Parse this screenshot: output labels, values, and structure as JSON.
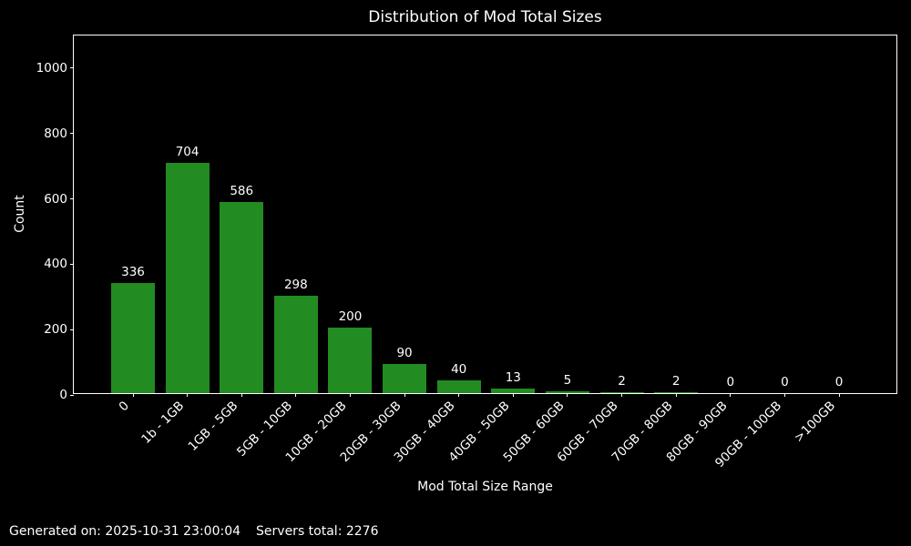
{
  "title": "Distribution of Mod Total Sizes",
  "xlabel": "Mod Total Size Range",
  "ylabel": "Count",
  "footer": {
    "generated": "Generated on: 2025-10-31 23:00:04",
    "servers_total": "Servers total: 2276"
  },
  "colors": {
    "background": "#000000",
    "bar": "#228B22",
    "text": "#ffffff",
    "axis": "#ffffff"
  },
  "chart_data": {
    "type": "bar",
    "title": "Distribution of Mod Total Sizes",
    "xlabel": "Mod Total Size Range",
    "ylabel": "Count",
    "categories": [
      "0",
      "1b - 1GB",
      "1GB - 5GB",
      "5GB - 10GB",
      "10GB - 20GB",
      "20GB - 30GB",
      "30GB - 40GB",
      "40GB - 50GB",
      "50GB - 60GB",
      "60GB - 70GB",
      "70GB - 80GB",
      "80GB - 90GB",
      "90GB - 100GB",
      ">100GB"
    ],
    "values": [
      336,
      704,
      586,
      298,
      200,
      90,
      40,
      13,
      5,
      2,
      2,
      0,
      0,
      0
    ],
    "bar_value_labels": [
      "336",
      "704",
      "586",
      "298",
      "200",
      "90",
      "40",
      "13",
      "5",
      "2",
      "2",
      "0",
      "0",
      "0"
    ],
    "yticks": [
      0,
      200,
      400,
      600,
      800,
      1000
    ],
    "ylim": [
      0,
      1100
    ],
    "bar_color": "#228B22",
    "grid": false,
    "legend": null
  }
}
